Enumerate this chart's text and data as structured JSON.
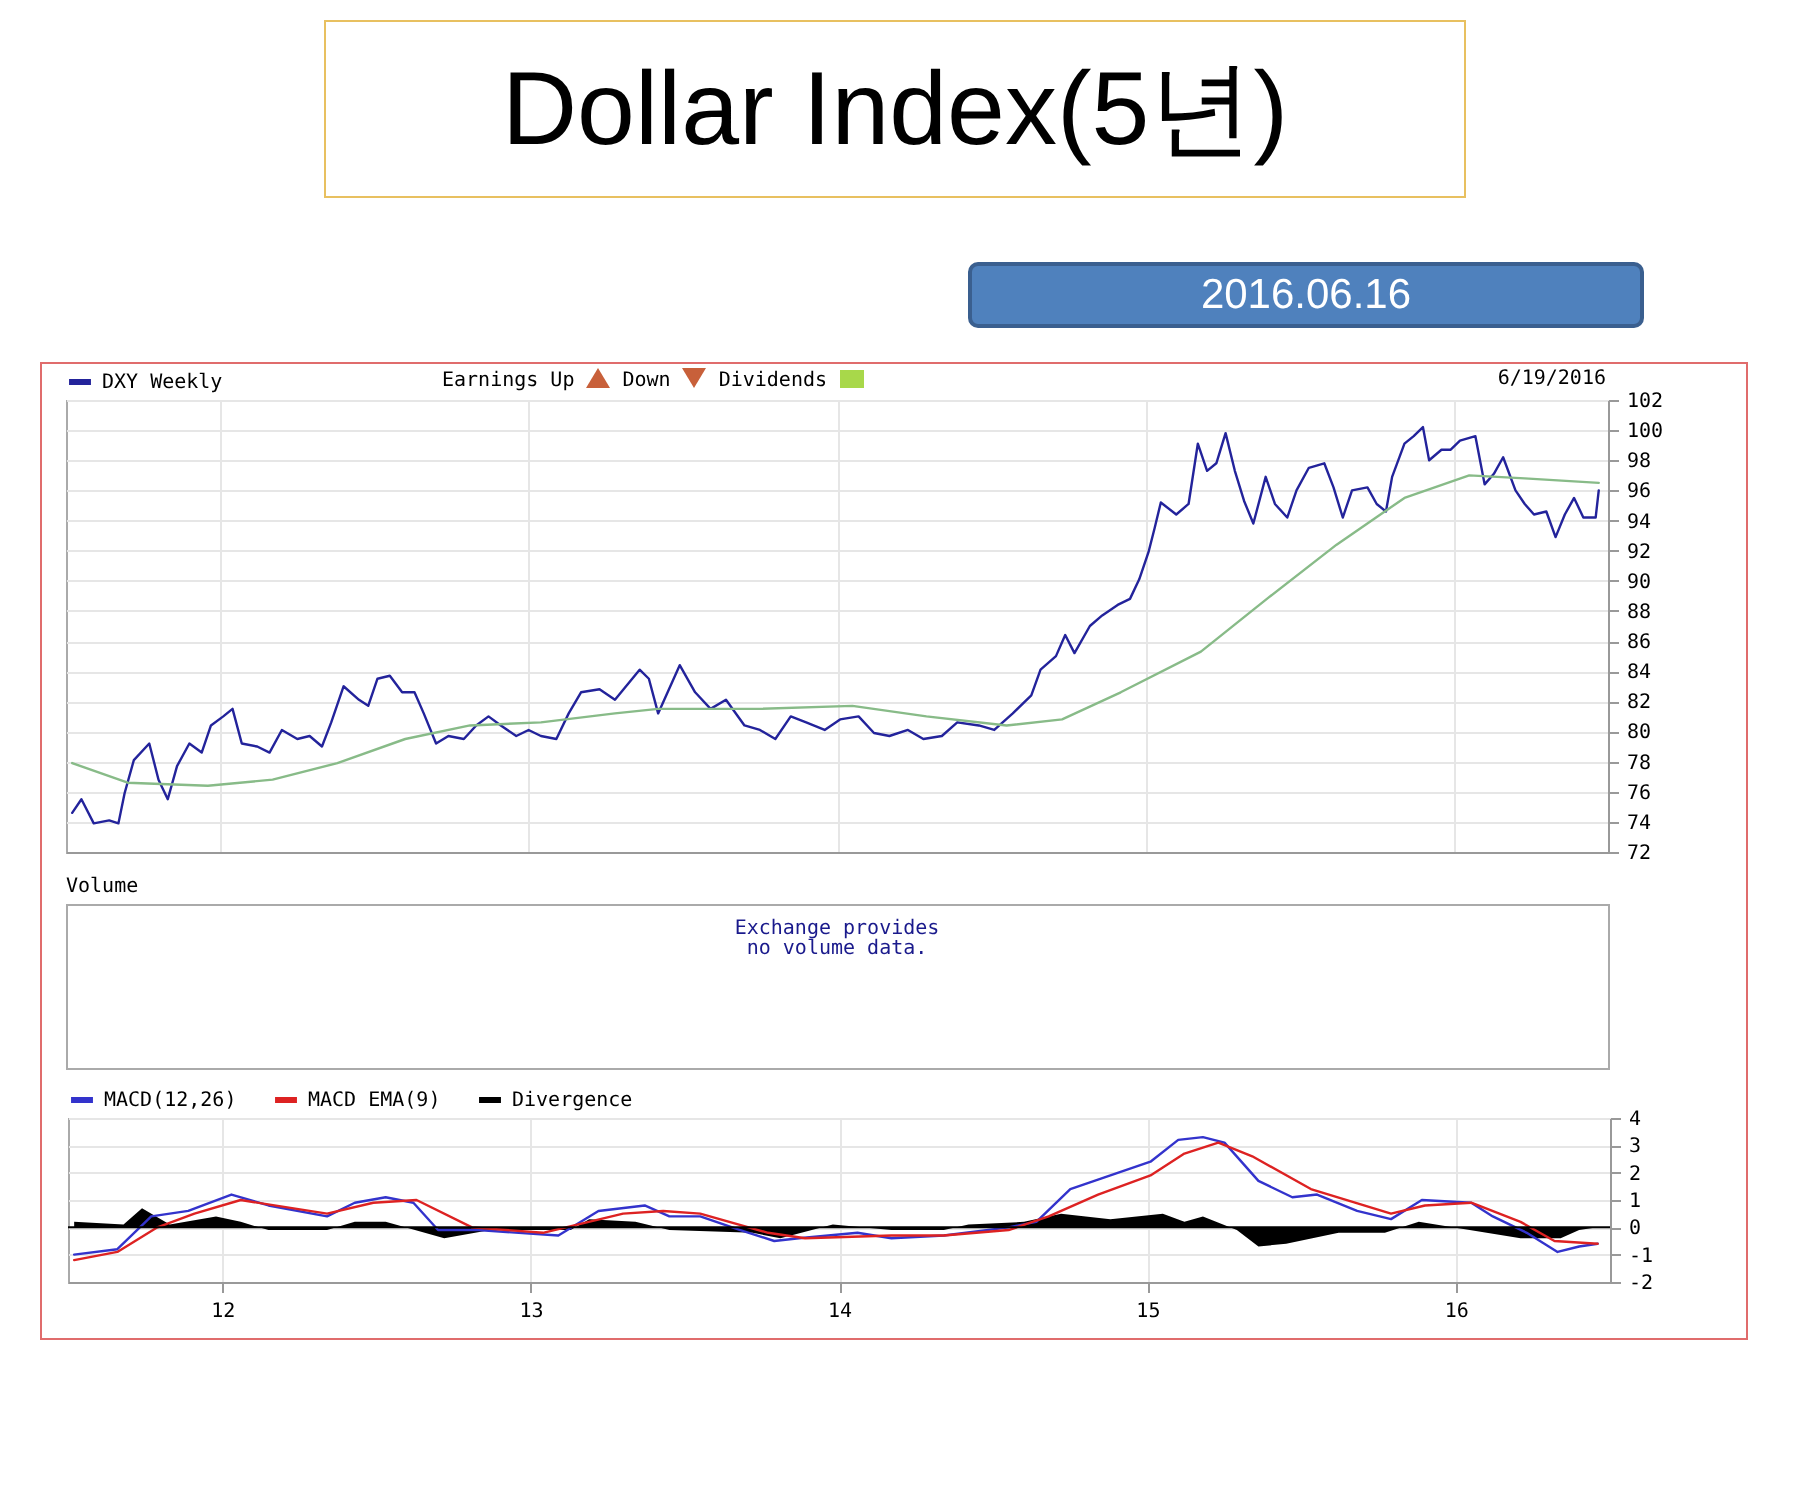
{
  "chart_data": [
    {
      "type": "line",
      "title": "Dollar Index(5년)",
      "subtitle": "2016.06.16",
      "annotations": [
        "Earnings Up",
        "Down",
        "Dividends",
        "6/19/2016"
      ],
      "legend": "top left",
      "grid": true,
      "tick_labels": "y",
      "xlim": [
        2011.5,
        2016.5
      ],
      "xticks": [
        2012,
        2013,
        2014,
        2015,
        2016
      ],
      "ylim": [
        72,
        102
      ],
      "yticks": [
        72,
        74,
        76,
        78,
        80,
        82,
        84,
        86,
        88,
        90,
        92,
        94,
        96,
        98,
        100,
        102
      ],
      "series": [
        {
          "name": "DXY Weekly",
          "color": "#23239b",
          "x": [
            2011.52,
            2011.55,
            2011.59,
            2011.64,
            2011.67,
            2011.69,
            2011.72,
            2011.77,
            2011.8,
            2011.83,
            2011.86,
            2011.9,
            2011.94,
            2011.97,
            2012.01,
            2012.04,
            2012.07,
            2012.12,
            2012.16,
            2012.2,
            2012.25,
            2012.29,
            2012.33,
            2012.36,
            2012.4,
            2012.45,
            2012.48,
            2012.51,
            2012.55,
            2012.59,
            2012.63,
            2012.66,
            2012.7,
            2012.74,
            2012.79,
            2012.83,
            2012.87,
            2012.91,
            2012.96,
            2013.0,
            2013.04,
            2013.09,
            2013.13,
            2013.17,
            2013.23,
            2013.28,
            2013.36,
            2013.39,
            2013.42,
            2013.49,
            2013.54,
            2013.59,
            2013.64,
            2013.7,
            2013.75,
            2013.8,
            2013.85,
            2013.9,
            2013.96,
            2014.01,
            2014.07,
            2014.12,
            2014.17,
            2014.23,
            2014.28,
            2014.34,
            2014.39,
            2014.46,
            2014.51,
            2014.57,
            2014.63,
            2014.66,
            2014.71,
            2014.74,
            2014.77,
            2014.82,
            2014.86,
            2014.91,
            2014.95,
            2014.98,
            2015.01,
            2015.03,
            2015.05,
            2015.1,
            2015.14,
            2015.17,
            2015.2,
            2015.23,
            2015.26,
            2015.29,
            2015.32,
            2015.35,
            2015.39,
            2015.42,
            2015.46,
            2015.49,
            2015.53,
            2015.58,
            2015.61,
            2015.64,
            2015.67,
            2015.72,
            2015.75,
            2015.78,
            2015.8,
            2015.84,
            2015.87,
            2015.9,
            2015.92,
            2015.96,
            2015.99,
            2016.02,
            2016.07,
            2016.1,
            2016.13,
            2016.16,
            2016.2,
            2016.23,
            2016.26,
            2016.3,
            2016.33,
            2016.36,
            2016.39,
            2016.42,
            2016.46,
            2016.47
          ],
          "values": [
            74.6,
            75.5,
            73.9,
            74.1,
            73.9,
            75.9,
            78.1,
            79.2,
            76.8,
            75.5,
            77.7,
            79.2,
            78.6,
            80.4,
            81.0,
            81.5,
            79.2,
            79.0,
            78.6,
            80.1,
            79.5,
            79.7,
            79.0,
            80.6,
            83.0,
            82.1,
            81.7,
            83.5,
            83.7,
            82.6,
            82.6,
            81.2,
            79.2,
            79.7,
            79.5,
            80.4,
            81.0,
            80.4,
            79.7,
            80.1,
            79.7,
            79.5,
            81.2,
            82.6,
            82.8,
            82.1,
            84.1,
            83.5,
            81.2,
            84.4,
            82.6,
            81.5,
            82.1,
            80.4,
            80.1,
            79.5,
            81.0,
            80.6,
            80.1,
            80.8,
            81.0,
            79.9,
            79.7,
            80.1,
            79.5,
            79.7,
            80.6,
            80.4,
            80.1,
            81.2,
            82.4,
            84.1,
            85.0,
            86.4,
            85.2,
            87.0,
            87.7,
            88.4,
            88.8,
            90.1,
            91.9,
            93.5,
            95.2,
            94.4,
            95.1,
            99.1,
            97.3,
            97.8,
            99.8,
            97.3,
            95.3,
            93.8,
            96.9,
            95.1,
            94.2,
            96.0,
            97.5,
            97.8,
            96.2,
            94.2,
            96.0,
            96.2,
            95.1,
            94.6,
            96.9,
            99.1,
            99.6,
            100.2,
            98.0,
            98.7,
            98.7,
            99.3,
            99.6,
            96.4,
            97.1,
            98.2,
            96.0,
            95.1,
            94.4,
            94.6,
            92.9,
            94.4,
            95.5,
            94.2,
            94.2,
            96.0
          ]
        },
        {
          "color": "#88bb88",
          "x": [
            2011.52,
            2011.7,
            2011.96,
            2012.17,
            2012.38,
            2012.6,
            2012.81,
            2013.04,
            2013.28,
            2013.42,
            2013.75,
            2014.05,
            2014.29,
            2014.55,
            2014.73,
            2014.92,
            2015.18,
            2015.4,
            2015.62,
            2015.84,
            2016.05,
            2016.23,
            2016.47
          ],
          "values": [
            77.9,
            76.6,
            76.4,
            76.8,
            77.9,
            79.5,
            80.4,
            80.6,
            81.2,
            81.5,
            81.5,
            81.7,
            81.0,
            80.4,
            80.8,
            82.6,
            85.3,
            88.9,
            92.4,
            95.5,
            97.0,
            96.8,
            96.5
          ]
        }
      ]
    },
    {
      "type": "other",
      "title": "Volume",
      "annotations": [
        "Exchange provides",
        "no volume data."
      ]
    },
    {
      "type": "line",
      "legend": "top left",
      "grid": true,
      "xlim": [
        2011.5,
        2016.5
      ],
      "xticks": [
        {
          "value": 2012,
          "label": "12"
        },
        {
          "value": 2013,
          "label": "13"
        },
        {
          "value": 2014,
          "label": "14"
        },
        {
          "value": 2015,
          "label": "15"
        },
        {
          "value": 2016,
          "label": "16"
        }
      ],
      "ylim": [
        -2,
        4
      ],
      "yticks": [
        -2,
        -1,
        0,
        1,
        2,
        3,
        4
      ],
      "ref_lines": [
        {
          "axis": "y",
          "value": 0,
          "color": "#000000"
        }
      ],
      "series": [
        {
          "name": "MACD(12,26)",
          "color": "#3333cc",
          "x": [
            2011.52,
            2011.66,
            2011.77,
            2011.89,
            2012.03,
            2012.15,
            2012.34,
            2012.43,
            2012.53,
            2012.62,
            2012.7,
            2012.83,
            2013.09,
            2013.22,
            2013.37,
            2013.45,
            2013.55,
            2013.68,
            2013.79,
            2013.87,
            2014.06,
            2014.17,
            2014.34,
            2014.55,
            2014.64,
            2014.75,
            2014.88,
            2015.01,
            2015.1,
            2015.18,
            2015.25,
            2015.36,
            2015.47,
            2015.55,
            2015.68,
            2015.79,
            2015.89,
            2016.05,
            2016.12,
            2016.23,
            2016.33,
            2016.4,
            2016.46
          ],
          "values": [
            -1.0,
            -0.8,
            0.4,
            0.6,
            1.2,
            0.8,
            0.4,
            0.9,
            1.1,
            0.9,
            -0.1,
            -0.1,
            -0.3,
            0.6,
            0.8,
            0.4,
            0.4,
            -0.1,
            -0.5,
            -0.4,
            -0.2,
            -0.4,
            -0.3,
            0,
            0.2,
            1.4,
            1.9,
            2.4,
            3.2,
            3.3,
            3.1,
            1.7,
            1.1,
            1.2,
            0.6,
            0.3,
            1.0,
            0.9,
            0.4,
            -0.2,
            -0.9,
            -0.7,
            -0.6
          ]
        },
        {
          "name": "MACD EMA(9)",
          "color": "#dd2222",
          "x": [
            2011.52,
            2011.66,
            2011.79,
            2011.91,
            2012.06,
            2012.34,
            2012.49,
            2012.63,
            2012.81,
            2013.04,
            2013.3,
            2013.43,
            2013.55,
            2013.77,
            2013.89,
            2014.17,
            2014.34,
            2014.55,
            2014.68,
            2014.84,
            2015.01,
            2015.12,
            2015.23,
            2015.34,
            2015.53,
            2015.79,
            2015.9,
            2016.05,
            2016.21,
            2016.32,
            2016.46
          ],
          "values": [
            -1.2,
            -0.9,
            0,
            0.5,
            1.0,
            0.5,
            0.9,
            1.0,
            0,
            -0.2,
            0.5,
            0.6,
            0.5,
            -0.2,
            -0.4,
            -0.3,
            -0.3,
            -0.1,
            0.4,
            1.2,
            1.9,
            2.7,
            3.1,
            2.6,
            1.4,
            0.5,
            0.8,
            0.9,
            0.2,
            -0.5,
            -0.6
          ]
        },
        {
          "name": "Divergence",
          "type": "area",
          "color": "#000000",
          "x": [
            2011.52,
            2011.68,
            2011.74,
            2011.83,
            2011.98,
            2012.06,
            2012.15,
            2012.34,
            2012.43,
            2012.53,
            2012.72,
            2012.87,
            2013.13,
            2013.19,
            2013.34,
            2013.45,
            2013.72,
            2013.81,
            2013.98,
            2014.17,
            2014.34,
            2014.42,
            2014.6,
            2014.72,
            2014.88,
            2015.05,
            2015.12,
            2015.18,
            2015.29,
            2015.36,
            2015.45,
            2015.62,
            2015.77,
            2015.88,
            2015.99,
            2016.1,
            2016.21,
            2016.34,
            2016.4,
            2016.46
          ],
          "values": [
            0.2,
            0.1,
            0.7,
            0.1,
            0.4,
            0.2,
            -0.1,
            -0.1,
            0.2,
            0.2,
            -0.4,
            -0.1,
            -0.1,
            0.3,
            0.2,
            -0.1,
            -0.2,
            -0.4,
            0.1,
            -0.1,
            -0.1,
            0.1,
            0.2,
            0.5,
            0.3,
            0.5,
            0.2,
            0.4,
            -0.1,
            -0.7,
            -0.6,
            -0.2,
            -0.2,
            0.2,
            0,
            -0.2,
            -0.4,
            -0.4,
            -0.1,
            0
          ]
        }
      ]
    }
  ]
}
